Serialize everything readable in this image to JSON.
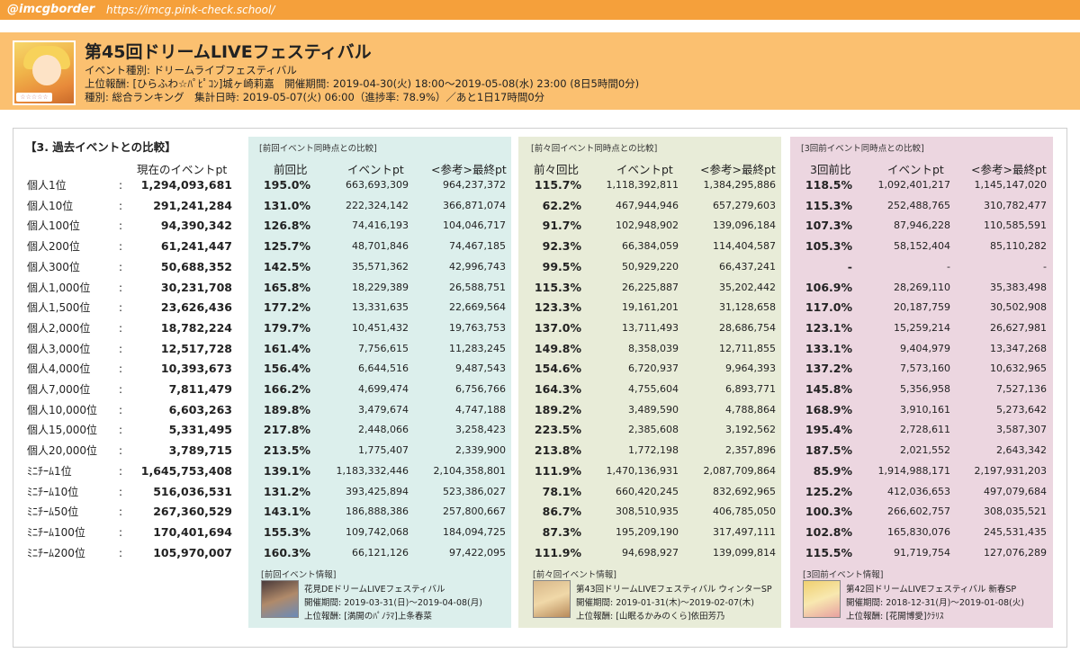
{
  "topbar": {
    "handle": "@imcgborder",
    "url": "https://imcg.pink-check.school/"
  },
  "event": {
    "title": "第45回ドリームLIVEフェスティバル",
    "type_line": "イベント種別: ドリームライブフェスティバル",
    "reward_period_line": "上位報酬: [ひらふわ☆ﾊﾟﾋﾟｺﾝ]城ヶ崎莉嘉　開催期間: 2019-04-30(火) 18:00～2019-05-08(水) 23:00 (8日5時間0分)",
    "ranking_line": "種別: 総合ランキング　集計日時: 2019-05-07(火) 06:00（進捗率: 78.9%）／あと1日17時間0分",
    "avatar_stars": "☆☆☆☆☆"
  },
  "section": {
    "title": "【3. 過去イベントとの比較】",
    "current_header": "現在のイベントpt",
    "groups": [
      {
        "head": "[前回イベント同時点との比較]",
        "ratio": "前回比",
        "pt": "イベントpt",
        "final": "<参考>最終pt"
      },
      {
        "head": "[前々回イベント同時点との比較]",
        "ratio": "前々回比",
        "pt": "イベントpt",
        "final": "<参考>最終pt"
      },
      {
        "head": "[3回前イベント同時点との比較]",
        "ratio": "3回前比",
        "pt": "イベントpt",
        "final": "<参考>最終pt"
      }
    ]
  },
  "rows": [
    {
      "rank": "個人1位",
      "current": "1,294,093,681",
      "g": [
        [
          "195.0%",
          "663,693,309",
          "964,237,372"
        ],
        [
          "115.7%",
          "1,118,392,811",
          "1,384,295,886"
        ],
        [
          "118.5%",
          "1,092,401,217",
          "1,145,147,020"
        ]
      ]
    },
    {
      "rank": "個人10位",
      "current": "291,241,284",
      "g": [
        [
          "131.0%",
          "222,324,142",
          "366,871,074"
        ],
        [
          "62.2%",
          "467,944,946",
          "657,279,603"
        ],
        [
          "115.3%",
          "252,488,765",
          "310,782,477"
        ]
      ]
    },
    {
      "rank": "個人100位",
      "current": "94,390,342",
      "g": [
        [
          "126.8%",
          "74,416,193",
          "104,046,717"
        ],
        [
          "91.7%",
          "102,948,902",
          "139,096,184"
        ],
        [
          "107.3%",
          "87,946,228",
          "110,585,591"
        ]
      ]
    },
    {
      "rank": "個人200位",
      "current": "61,241,447",
      "g": [
        [
          "125.7%",
          "48,701,846",
          "74,467,185"
        ],
        [
          "92.3%",
          "66,384,059",
          "114,404,587"
        ],
        [
          "105.3%",
          "58,152,404",
          "85,110,282"
        ]
      ]
    },
    {
      "rank": "個人300位",
      "current": "50,688,352",
      "g": [
        [
          "142.5%",
          "35,571,362",
          "42,996,743"
        ],
        [
          "99.5%",
          "50,929,220",
          "66,437,241"
        ],
        [
          "-",
          "-",
          "-"
        ]
      ]
    },
    {
      "rank": "個人1,000位",
      "current": "30,231,708",
      "g": [
        [
          "165.8%",
          "18,229,389",
          "26,588,751"
        ],
        [
          "115.3%",
          "26,225,887",
          "35,202,442"
        ],
        [
          "106.9%",
          "28,269,110",
          "35,383,498"
        ]
      ]
    },
    {
      "rank": "個人1,500位",
      "current": "23,626,436",
      "g": [
        [
          "177.2%",
          "13,331,635",
          "22,669,564"
        ],
        [
          "123.3%",
          "19,161,201",
          "31,128,658"
        ],
        [
          "117.0%",
          "20,187,759",
          "30,502,908"
        ]
      ]
    },
    {
      "rank": "個人2,000位",
      "current": "18,782,224",
      "g": [
        [
          "179.7%",
          "10,451,432",
          "19,763,753"
        ],
        [
          "137.0%",
          "13,711,493",
          "28,686,754"
        ],
        [
          "123.1%",
          "15,259,214",
          "26,627,981"
        ]
      ]
    },
    {
      "rank": "個人3,000位",
      "current": "12,517,728",
      "g": [
        [
          "161.4%",
          "7,756,615",
          "11,283,245"
        ],
        [
          "149.8%",
          "8,358,039",
          "12,711,855"
        ],
        [
          "133.1%",
          "9,404,979",
          "13,347,268"
        ]
      ]
    },
    {
      "rank": "個人4,000位",
      "current": "10,393,673",
      "g": [
        [
          "156.4%",
          "6,644,516",
          "9,487,543"
        ],
        [
          "154.6%",
          "6,720,937",
          "9,964,393"
        ],
        [
          "137.2%",
          "7,573,160",
          "10,632,965"
        ]
      ]
    },
    {
      "rank": "個人7,000位",
      "current": "7,811,479",
      "g": [
        [
          "166.2%",
          "4,699,474",
          "6,756,766"
        ],
        [
          "164.3%",
          "4,755,604",
          "6,893,771"
        ],
        [
          "145.8%",
          "5,356,958",
          "7,527,136"
        ]
      ]
    },
    {
      "rank": "個人10,000位",
      "current": "6,603,263",
      "g": [
        [
          "189.8%",
          "3,479,674",
          "4,747,188"
        ],
        [
          "189.2%",
          "3,489,590",
          "4,788,864"
        ],
        [
          "168.9%",
          "3,910,161",
          "5,273,642"
        ]
      ]
    },
    {
      "rank": "個人15,000位",
      "current": "5,331,495",
      "g": [
        [
          "217.8%",
          "2,448,066",
          "3,258,423"
        ],
        [
          "223.5%",
          "2,385,608",
          "3,192,562"
        ],
        [
          "195.4%",
          "2,728,611",
          "3,587,307"
        ]
      ]
    },
    {
      "rank": "個人20,000位",
      "current": "3,789,715",
      "g": [
        [
          "213.5%",
          "1,775,407",
          "2,339,900"
        ],
        [
          "213.8%",
          "1,772,198",
          "2,357,896"
        ],
        [
          "187.5%",
          "2,021,552",
          "2,643,342"
        ]
      ]
    },
    {
      "rank": "ﾐﾆﾁｰﾑ1位",
      "current": "1,645,753,408",
      "g": [
        [
          "139.1%",
          "1,183,332,446",
          "2,104,358,801"
        ],
        [
          "111.9%",
          "1,470,136,931",
          "2,087,709,864"
        ],
        [
          "85.9%",
          "1,914,988,171",
          "2,197,931,203"
        ]
      ]
    },
    {
      "rank": "ﾐﾆﾁｰﾑ10位",
      "current": "516,036,531",
      "g": [
        [
          "131.2%",
          "393,425,894",
          "523,386,027"
        ],
        [
          "78.1%",
          "660,420,245",
          "832,692,965"
        ],
        [
          "125.2%",
          "412,036,653",
          "497,079,684"
        ]
      ]
    },
    {
      "rank": "ﾐﾆﾁｰﾑ50位",
      "current": "267,360,529",
      "g": [
        [
          "143.1%",
          "186,888,386",
          "257,800,667"
        ],
        [
          "86.7%",
          "308,510,935",
          "406,785,050"
        ],
        [
          "100.3%",
          "266,602,757",
          "308,035,521"
        ]
      ]
    },
    {
      "rank": "ﾐﾆﾁｰﾑ100位",
      "current": "170,401,694",
      "g": [
        [
          "155.3%",
          "109,742,068",
          "184,094,725"
        ],
        [
          "87.3%",
          "195,209,190",
          "317,497,111"
        ],
        [
          "102.8%",
          "165,830,076",
          "245,531,435"
        ]
      ]
    },
    {
      "rank": "ﾐﾆﾁｰﾑ200位",
      "current": "105,970,007",
      "g": [
        [
          "160.3%",
          "66,121,126",
          "97,422,095"
        ],
        [
          "111.9%",
          "94,698,927",
          "139,099,814"
        ],
        [
          "115.5%",
          "91,719,754",
          "127,076,289"
        ]
      ]
    }
  ],
  "colon": ":",
  "info": [
    {
      "head": "[前回イベント情報]",
      "name": "花見DEドリームLIVEフェスティバル",
      "period": "開催期間: 2019-03-31(日)～2019-04-08(月)",
      "reward": "上位報酬: [満開のﾊﾟﾉﾗﾏ]上条春菜"
    },
    {
      "head": "[前々回イベント情報]",
      "name": "第43回ドリームLIVEフェスティバル ウィンターSP",
      "period": "開催期間: 2019-01-31(木)～2019-02-07(木)",
      "reward": "上位報酬: [山眠るかみのくら]依田芳乃"
    },
    {
      "head": "[3回前イベント情報]",
      "name": "第42回ドリームLIVEフェスティバル 新春SP",
      "period": "開催期間: 2018-12-31(月)～2019-01-08(火)",
      "reward": "上位報酬: [花開博愛]ｸﾗﾘｽ"
    }
  ]
}
